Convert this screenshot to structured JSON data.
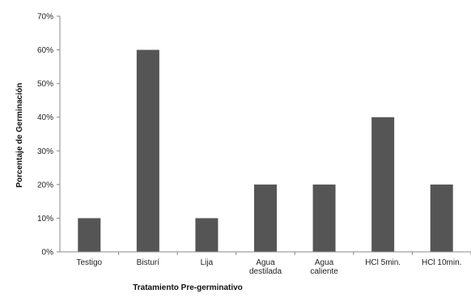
{
  "chart_data": {
    "type": "bar",
    "categories": [
      [
        "Testigo"
      ],
      [
        "Bisturí"
      ],
      [
        "Lija"
      ],
      [
        "Agua",
        "destilada"
      ],
      [
        "Agua",
        "caliente"
      ],
      [
        "HCl 5min."
      ],
      [
        "HCl 10min."
      ]
    ],
    "values": [
      10,
      60,
      10,
      20,
      20,
      40,
      20
    ],
    "xlabel": "Tratamiento Pre-germinativo",
    "ylabel": "Porcentaje de Germinación",
    "ylim": [
      0,
      70
    ],
    "yticks": [
      0,
      10,
      20,
      30,
      40,
      50,
      60,
      70
    ],
    "ytick_suffix": "%",
    "grid": false,
    "legend": "none",
    "bar_color": "#555555",
    "axis_color": "#888888"
  }
}
